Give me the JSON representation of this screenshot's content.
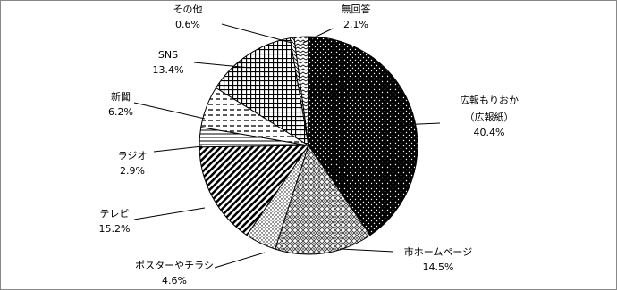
{
  "chart_data": {
    "type": "pie",
    "categories": [
      "広報もりおか\n（広報紙）",
      "市ホームページ",
      "ポスターやチラシ",
      "テレビ",
      "ラジオ",
      "新聞",
      "SNS",
      "その他",
      "無回答"
    ],
    "values": [
      40.4,
      14.5,
      4.6,
      15.2,
      2.9,
      6.2,
      13.4,
      0.6,
      2.1
    ],
    "value_labels": [
      "40.4%",
      "14.5%",
      "4.6%",
      "15.2%",
      "2.9%",
      "6.2%",
      "13.4%",
      "0.6%",
      "2.1%"
    ]
  }
}
